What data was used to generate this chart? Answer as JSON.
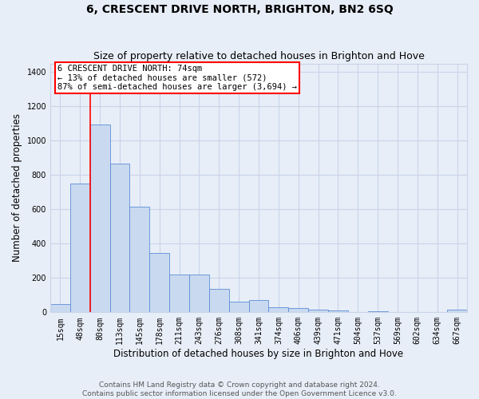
{
  "title": "6, CRESCENT DRIVE NORTH, BRIGHTON, BN2 6SQ",
  "subtitle": "Size of property relative to detached houses in Brighton and Hove",
  "xlabel": "Distribution of detached houses by size in Brighton and Hove",
  "ylabel": "Number of detached properties",
  "footer_line1": "Contains HM Land Registry data © Crown copyright and database right 2024.",
  "footer_line2": "Contains public sector information licensed under the Open Government Licence v3.0.",
  "categories": [
    "15sqm",
    "48sqm",
    "80sqm",
    "113sqm",
    "145sqm",
    "178sqm",
    "211sqm",
    "243sqm",
    "276sqm",
    "308sqm",
    "341sqm",
    "374sqm",
    "406sqm",
    "439sqm",
    "471sqm",
    "504sqm",
    "537sqm",
    "569sqm",
    "602sqm",
    "634sqm",
    "667sqm"
  ],
  "values": [
    50,
    750,
    1095,
    865,
    615,
    348,
    220,
    220,
    135,
    60,
    70,
    28,
    25,
    15,
    10,
    0,
    8,
    0,
    0,
    0,
    15
  ],
  "bar_color": "#c9d9f0",
  "bar_edge_color": "#5b8dd6",
  "vline_x_index": 2.0,
  "annotation_text_line1": "6 CRESCENT DRIVE NORTH: 74sqm",
  "annotation_text_line2": "← 13% of detached houses are smaller (572)",
  "annotation_text_line3": "87% of semi-detached houses are larger (3,694) →",
  "annotation_box_color": "white",
  "annotation_box_edge_color": "red",
  "vline_color": "red",
  "ylim_max": 1450,
  "yticks": [
    0,
    200,
    400,
    600,
    800,
    1000,
    1200,
    1400
  ],
  "grid_color": "#c8d4e8",
  "bg_color": "#e8eef8",
  "title_fontsize": 10,
  "subtitle_fontsize": 9,
  "axis_label_fontsize": 8.5,
  "tick_fontsize": 7,
  "footer_fontsize": 6.5,
  "annotation_fontsize": 7.5
}
